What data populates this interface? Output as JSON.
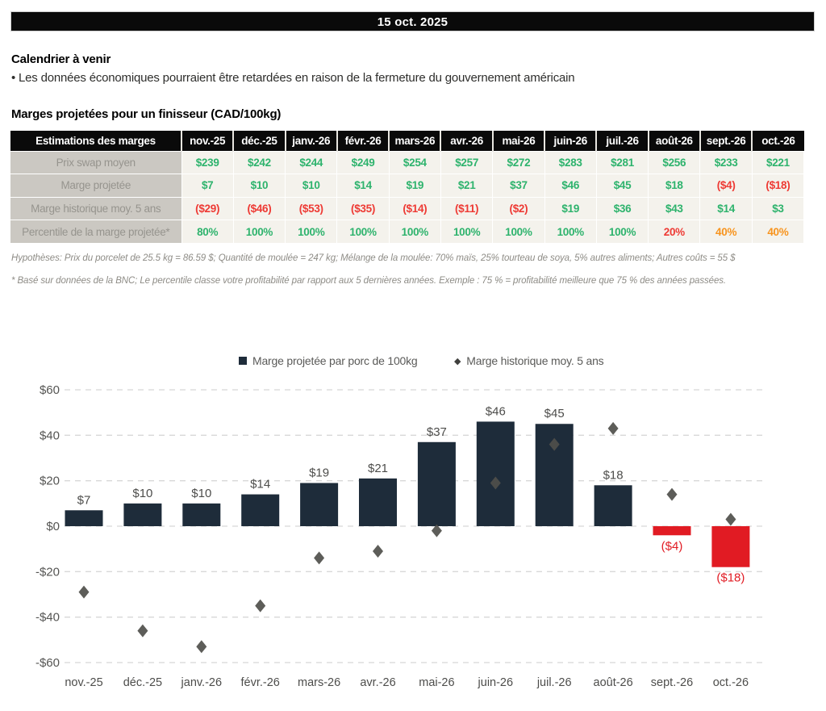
{
  "banner": {
    "date": "15 oct. 2025"
  },
  "calendar": {
    "title": "Calendrier à venir",
    "bullet": "• Les données économiques pourraient être retardées en raison de la fermeture du gouvernement américain"
  },
  "table": {
    "title": "Marges projetées pour un finisseur (CAD/100kg)",
    "header": [
      "Estimations des marges",
      "nov.-25",
      "déc.-25",
      "janv.-26",
      "févr.-26",
      "mars-26",
      "avr.-26",
      "mai-26",
      "juin-26",
      "juil.-26",
      "août-26",
      "sept.-26",
      "oct.-26"
    ],
    "rows": [
      {
        "label": "Prix swap moyen",
        "cells": [
          {
            "t": "$239",
            "c": "g"
          },
          {
            "t": "$242",
            "c": "g"
          },
          {
            "t": "$244",
            "c": "g"
          },
          {
            "t": "$249",
            "c": "g"
          },
          {
            "t": "$254",
            "c": "g"
          },
          {
            "t": "$257",
            "c": "g"
          },
          {
            "t": "$272",
            "c": "g"
          },
          {
            "t": "$283",
            "c": "g"
          },
          {
            "t": "$281",
            "c": "g"
          },
          {
            "t": "$256",
            "c": "g"
          },
          {
            "t": "$233",
            "c": "g"
          },
          {
            "t": "$221",
            "c": "g"
          }
        ]
      },
      {
        "label": "Marge projetée",
        "cells": [
          {
            "t": "$7",
            "c": "g"
          },
          {
            "t": "$10",
            "c": "g"
          },
          {
            "t": "$10",
            "c": "g"
          },
          {
            "t": "$14",
            "c": "g"
          },
          {
            "t": "$19",
            "c": "g"
          },
          {
            "t": "$21",
            "c": "g"
          },
          {
            "t": "$37",
            "c": "g"
          },
          {
            "t": "$46",
            "c": "g"
          },
          {
            "t": "$45",
            "c": "g"
          },
          {
            "t": "$18",
            "c": "g"
          },
          {
            "t": "($4)",
            "c": "r"
          },
          {
            "t": "($18)",
            "c": "r"
          }
        ]
      },
      {
        "label": "Marge historique moy. 5 ans",
        "cells": [
          {
            "t": "($29)",
            "c": "r"
          },
          {
            "t": "($46)",
            "c": "r"
          },
          {
            "t": "($53)",
            "c": "r"
          },
          {
            "t": "($35)",
            "c": "r"
          },
          {
            "t": "($14)",
            "c": "r"
          },
          {
            "t": "($11)",
            "c": "r"
          },
          {
            "t": "($2)",
            "c": "r"
          },
          {
            "t": "$19",
            "c": "g"
          },
          {
            "t": "$36",
            "c": "g"
          },
          {
            "t": "$43",
            "c": "g"
          },
          {
            "t": "$14",
            "c": "g"
          },
          {
            "t": "$3",
            "c": "g"
          }
        ]
      },
      {
        "label": "Percentile de la marge projetée*",
        "cells": [
          {
            "t": "80%",
            "c": "g"
          },
          {
            "t": "100%",
            "c": "g"
          },
          {
            "t": "100%",
            "c": "g"
          },
          {
            "t": "100%",
            "c": "g"
          },
          {
            "t": "100%",
            "c": "g"
          },
          {
            "t": "100%",
            "c": "g"
          },
          {
            "t": "100%",
            "c": "g"
          },
          {
            "t": "100%",
            "c": "g"
          },
          {
            "t": "100%",
            "c": "g"
          },
          {
            "t": "20%",
            "c": "r"
          },
          {
            "t": "40%",
            "c": "o"
          },
          {
            "t": "40%",
            "c": "o"
          }
        ]
      }
    ]
  },
  "notes": {
    "hypotheses": "Hypothèses: Prix du porcelet de 25.5 kg = 86.59 $; Quantité de moulée = 247 kg; Mélange de la moulée: 70% maïs, 25% tourteau de soya, 5% autres aliments; Autres coûts = 55 $",
    "footnote": "* Basé sur données de la BNC; Le percentile classe votre profitabilité par rapport aux 5 dernières années. Exemple : 75 % = profitabilité meilleure que 75 % des années passées."
  },
  "chart_data": {
    "type": "bar",
    "categories": [
      "nov.-25",
      "déc.-25",
      "janv.-26",
      "févr.-26",
      "mars-26",
      "avr.-26",
      "mai-26",
      "juin-26",
      "juil.-26",
      "août-26",
      "sept.-26",
      "oct.-26"
    ],
    "series": [
      {
        "name": "Marge projetée par porc de 100kg",
        "type": "bar",
        "values": [
          7,
          10,
          10,
          14,
          19,
          21,
          37,
          46,
          45,
          18,
          -4,
          -18
        ],
        "labels": [
          "$7",
          "$10",
          "$10",
          "$14",
          "$19",
          "$21",
          "$37",
          "$46",
          "$45",
          "$18",
          "($4)",
          "($18)"
        ]
      },
      {
        "name": "Marge historique moy. 5 ans",
        "type": "scatter-diamond",
        "values": [
          -29,
          -46,
          -53,
          -35,
          -14,
          -11,
          -2,
          19,
          36,
          43,
          14,
          3
        ]
      }
    ],
    "ylim": [
      -60,
      60
    ],
    "yticks": [
      {
        "v": 60,
        "label": "$60"
      },
      {
        "v": 40,
        "label": "$40"
      },
      {
        "v": 20,
        "label": "$20"
      },
      {
        "v": 0,
        "label": "$0"
      },
      {
        "v": -20,
        "label": "-$20"
      },
      {
        "v": -40,
        "label": "-$40"
      },
      {
        "v": -60,
        "label": "-$60"
      }
    ],
    "grid": "horizontal-dashed",
    "legend_position": "top-center",
    "colors": {
      "bar_positive": "#1e2c3a",
      "bar_negative": "#e11b23",
      "diamond": "#4f4f4b",
      "label_positive": "#4d4d4b",
      "label_negative": "#e11b23",
      "gridline": "#d8d8d8",
      "axis_text": "#555553"
    }
  }
}
